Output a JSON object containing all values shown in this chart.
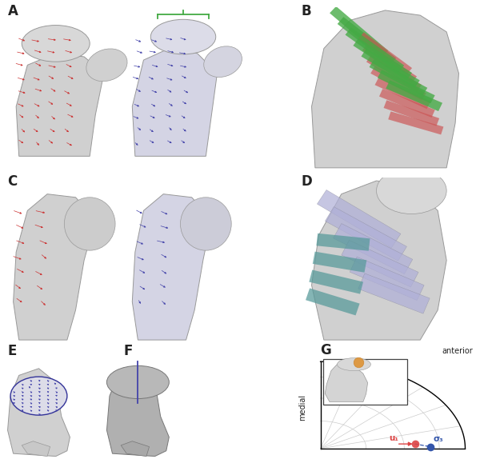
{
  "figure_width": 6.0,
  "figure_height": 5.84,
  "background_color": "#ffffff",
  "border_color": "#888888",
  "red_arrow_color": "#cc3333",
  "blue_arrow_color": "#4444aa",
  "green_fabric_color": "#44aa44",
  "red_fabric_color": "#cc5555",
  "lavender_color": "#b0b0d8",
  "teal_color": "#559999",
  "label_fontsize": 12,
  "label_color": "#222222",
  "curly_brace_color": "#44aa44",
  "axis_label_anterior": "anterior",
  "axis_label_medial": "medial",
  "sigma3_label": "σ₃",
  "u1_label": "u₁",
  "dot_red_color": "#dd4444",
  "dot_blue_color": "#3355aa",
  "arrow_red_color": "#dd4444"
}
